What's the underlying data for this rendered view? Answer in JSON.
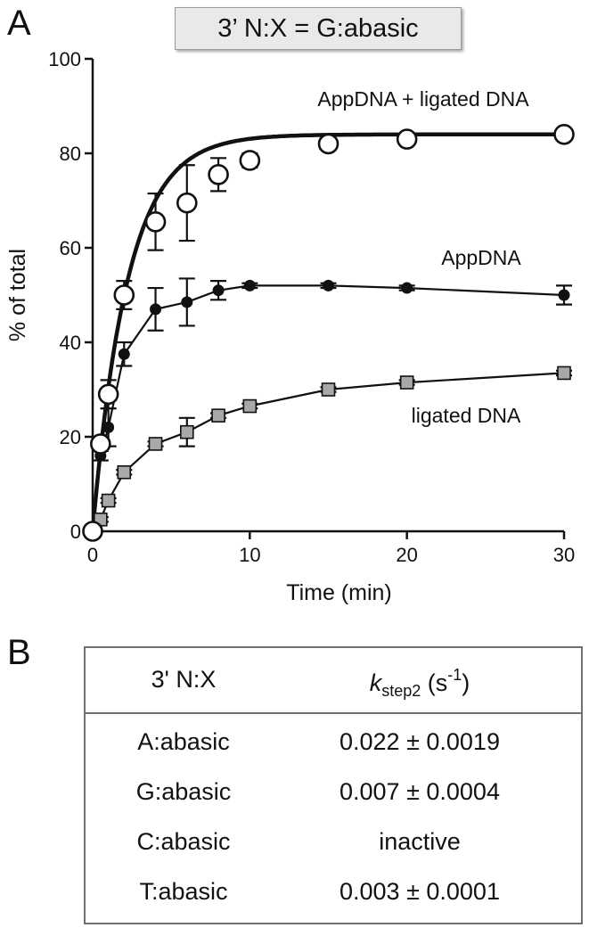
{
  "panel_a_label": "A",
  "panel_b_label": "B",
  "chart_data": {
    "type": "scatter",
    "title": "3’ N:X = G:abasic",
    "xlabel": "Time (min)",
    "ylabel": "% of total",
    "xlim": [
      0,
      30
    ],
    "ylim": [
      0,
      100
    ],
    "x_ticks": [
      0,
      10,
      20,
      30
    ],
    "x_tick_labels": [
      "0",
      "10",
      "20",
      "30"
    ],
    "y_ticks": [
      0,
      20,
      40,
      60,
      80,
      100
    ],
    "y_tick_labels": [
      "0",
      "20",
      "40",
      "60",
      "80",
      "100"
    ],
    "grid": false,
    "series": [
      {
        "name": "AppDNA + ligated DNA",
        "marker": "open-circle",
        "x": [
          0,
          0.5,
          1,
          2,
          4,
          6,
          8,
          10,
          15,
          20,
          30
        ],
        "y": [
          0,
          18.5,
          29,
          50,
          65.5,
          69.5,
          75.5,
          78.5,
          82,
          83,
          84
        ],
        "err": [
          0,
          1,
          3,
          3,
          6,
          8,
          3.5,
          1.5,
          1,
          1,
          1
        ],
        "fit": "exponential",
        "fit_params": {
          "ymax": 84,
          "k": 0.45
        }
      },
      {
        "name": "AppDNA",
        "marker": "filled-circle",
        "x": [
          0,
          0.5,
          1,
          2,
          4,
          6,
          8,
          10,
          15,
          20,
          30
        ],
        "y": [
          0,
          16,
          22,
          37.5,
          47,
          48.5,
          51,
          52,
          52,
          51.5,
          50
        ],
        "err": [
          0,
          1,
          4,
          2.5,
          4.5,
          5,
          2,
          0.5,
          0.5,
          0.5,
          2
        ]
      },
      {
        "name": "ligated DNA",
        "marker": "gray-square",
        "x": [
          0,
          0.5,
          1,
          2,
          4,
          6,
          8,
          10,
          15,
          20,
          30
        ],
        "y": [
          0,
          2.5,
          6.5,
          12.5,
          18.5,
          21,
          24.5,
          26.5,
          30,
          31.5,
          33.5
        ],
        "err": [
          0,
          0.5,
          0.5,
          0.5,
          0.5,
          3,
          0.5,
          0.5,
          0.5,
          0.5,
          0.5
        ]
      }
    ]
  },
  "table": {
    "header": {
      "col1": "3' N:X",
      "k_symbol": "k",
      "k_subscript": "step2",
      "unit_open": " (s",
      "unit_exponent": "-1",
      "unit_close": ")"
    },
    "rows": [
      {
        "pair": "A:abasic",
        "value": "0.022 ± 0.0019"
      },
      {
        "pair": "G:abasic",
        "value": "0.007 ± 0.0004"
      },
      {
        "pair": "C:abasic",
        "value": "inactive"
      },
      {
        "pair": "T:abasic",
        "value": "0.003 ± 0.0001"
      }
    ]
  }
}
